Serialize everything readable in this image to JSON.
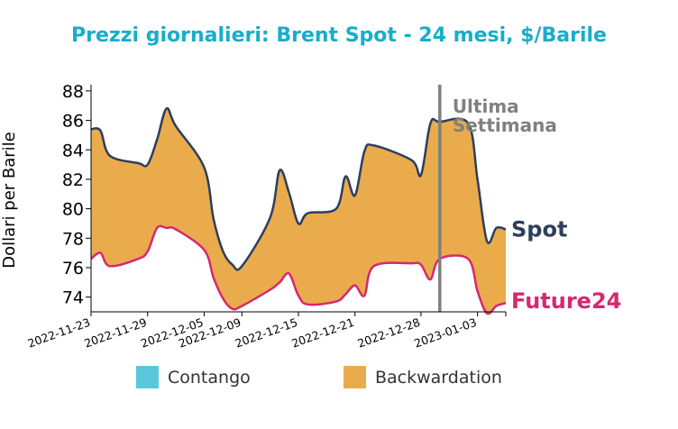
{
  "chart_data": {
    "type": "area",
    "title": "Prezzi giornalieri: Brent Spot - 24 mesi, $/Barile",
    "xlabel": "",
    "ylabel": "Dollari per Barile",
    "ylim": [
      73,
      88.3
    ],
    "yticks": [
      74,
      76,
      78,
      80,
      82,
      84,
      86,
      88
    ],
    "x_tick_labels": [
      "2022-11-23",
      "2022-11-29",
      "2022-12-05",
      "2022-12-09",
      "2022-12-15",
      "2022-12-21",
      "2022-12-28",
      "2023-01-03"
    ],
    "x": [
      "2022-11-23",
      "2022-11-24",
      "2022-11-25",
      "2022-11-28",
      "2022-11-29",
      "2022-11-30",
      "2022-12-01",
      "2022-12-02",
      "2022-12-05",
      "2022-12-06",
      "2022-12-07",
      "2022-12-08",
      "2022-12-09",
      "2022-12-12",
      "2022-12-13",
      "2022-12-14",
      "2022-12-15",
      "2022-12-16",
      "2022-12-19",
      "2022-12-20",
      "2022-12-21",
      "2022-12-22",
      "2022-12-23",
      "2022-12-27",
      "2022-12-28",
      "2022-12-29",
      "2022-12-30",
      "2023-01-02",
      "2023-01-03",
      "2023-01-04",
      "2023-01-05",
      "2023-01-06"
    ],
    "series": [
      {
        "name": "Spot",
        "color": "#2d3e5e",
        "values": [
          85.4,
          85.3,
          83.6,
          83.1,
          83.0,
          84.7,
          86.8,
          85.6,
          82.8,
          79.3,
          77.1,
          76.2,
          76.1,
          79.4,
          82.6,
          81.1,
          79.0,
          79.7,
          80.0,
          82.2,
          80.9,
          83.9,
          84.3,
          83.3,
          82.3,
          85.8,
          85.9,
          85.8,
          82.0,
          77.8,
          78.7,
          78.6
        ]
      },
      {
        "name": "Future24",
        "color": "#d6286f",
        "values": [
          76.6,
          77.0,
          76.1,
          76.6,
          77.1,
          78.7,
          78.7,
          78.6,
          77.2,
          75.3,
          73.9,
          73.2,
          73.4,
          74.5,
          75.0,
          75.6,
          74.1,
          73.5,
          73.7,
          74.2,
          74.8,
          74.1,
          76.1,
          76.3,
          76.2,
          75.2,
          76.6,
          76.6,
          74.4,
          72.9,
          73.4,
          73.6
        ]
      }
    ],
    "fill": {
      "between": [
        "Spot",
        "Future24"
      ],
      "backwardation_color": "#eaab4d",
      "contango_color": "#5ac7dc"
    },
    "vline": {
      "x": "2022-12-30",
      "label": "Ultima Settimana",
      "color": "#808080"
    },
    "legend": {
      "placement": "bottom",
      "entries": [
        {
          "label": "Contango",
          "color": "#5ac7dc"
        },
        {
          "label": "Backwardation",
          "color": "#eaab4d"
        }
      ]
    },
    "end_labels": [
      "Spot",
      "Future24"
    ],
    "title_color": "#18adca",
    "grid": false
  }
}
